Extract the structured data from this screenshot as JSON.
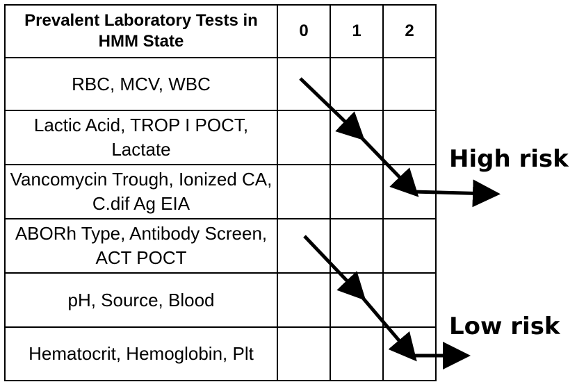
{
  "table": {
    "header": {
      "tests": "Prevalent Laboratory Tests in HMM State",
      "states": [
        "0",
        "1",
        "2"
      ]
    },
    "rows": [
      "RBC, MCV, WBC",
      "Lactic Acid, TROP I POCT, Lactate",
      "Vancomycin Trough, Ionized CA, C.dif Ag EIA",
      "ABORh Type, Antibody Screen, ACT POCT",
      "pH, Source, Blood",
      "Hematocrit, Hemoglobin, Plt"
    ]
  },
  "labels": {
    "high_risk": "High risk",
    "low_risk": "Low risk"
  }
}
